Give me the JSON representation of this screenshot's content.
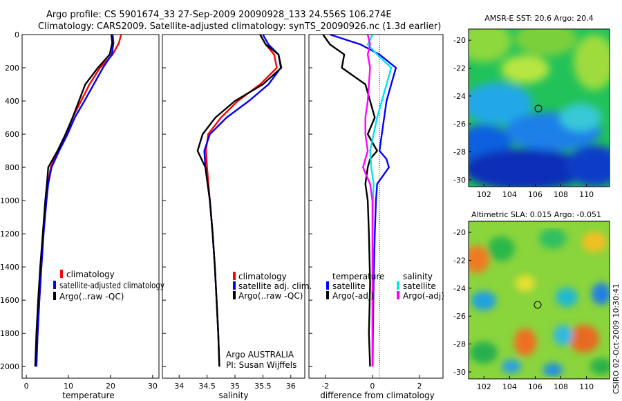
{
  "header": {
    "title_line1": "Argo profile: CS 5901674_33 27-Sep-2009 20090928_133 24.556S 106.274E",
    "title_line2": "Climatology: CARS2009. Satellite-adjusted climatology: synTS_20090926.nc (1.3d earlier)"
  },
  "colors": {
    "red": "#ff0000",
    "blue": "#0000ff",
    "black": "#000000",
    "cyan": "#00e5ee",
    "magenta": "#ff00ff"
  },
  "chart_data": [
    {
      "id": "temperature",
      "type": "line",
      "xlabel": "temperature",
      "ylabel": "",
      "xlim": [
        -1,
        31.5
      ],
      "ylim": [
        0,
        2070
      ],
      "y_reversed": true,
      "xticks": [
        0,
        10,
        20,
        30
      ],
      "yticks": [
        0,
        200,
        400,
        600,
        800,
        1000,
        1200,
        1400,
        1600,
        1800,
        2000
      ],
      "legend": {
        "placement": "lower-right",
        "entries": [
          "climatology",
          "satellite-adjusted climatology",
          "Argo(..raw -QC)"
        ]
      },
      "series": [
        {
          "name": "climatology",
          "color": "red",
          "x": [
            22.5,
            22,
            20.5,
            17.5,
            15,
            13,
            11,
            9.5,
            7.5,
            5.8,
            5.1,
            4.7,
            4,
            3.5,
            3.1,
            2.7,
            2.4
          ],
          "y": [
            0,
            50,
            120,
            200,
            300,
            400,
            500,
            600,
            700,
            800,
            900,
            1000,
            1200,
            1400,
            1600,
            1800,
            2000
          ]
        },
        {
          "name": "satellite-adjusted climatology",
          "color": "blue",
          "x": [
            20.5,
            20.7,
            20.3,
            18.2,
            16,
            13.8,
            11.5,
            9.8,
            7.8,
            6,
            5.2,
            4.8,
            4.1,
            3.6,
            3.1,
            2.7,
            2.4
          ],
          "y": [
            0,
            50,
            120,
            200,
            300,
            400,
            500,
            600,
            700,
            800,
            900,
            1000,
            1200,
            1400,
            1600,
            1800,
            2000
          ]
        },
        {
          "name": "Argo(..raw -QC)",
          "color": "black",
          "x": [
            20.2,
            20.4,
            19.8,
            17,
            14,
            12.5,
            11,
            9.3,
            7.4,
            5.2,
            4.9,
            4.5,
            3.9,
            3.3,
            2.8,
            2.4,
            2.1
          ],
          "y": [
            0,
            50,
            120,
            200,
            300,
            400,
            500,
            600,
            700,
            800,
            900,
            1000,
            1200,
            1400,
            1600,
            1800,
            2000
          ]
        }
      ],
      "annotations": []
    },
    {
      "id": "salinity",
      "type": "line",
      "xlabel": "salinity",
      "xlim": [
        33.7,
        36.25
      ],
      "ylim": [
        0,
        2070
      ],
      "y_reversed": true,
      "xticks": [
        34,
        34.5,
        35,
        35.5,
        36
      ],
      "legend": {
        "placement": "lower-right",
        "entries": [
          "climatology",
          "satellite adj. clim.",
          "Argo(..raw -QC)"
        ]
      },
      "series": [
        {
          "name": "climatology",
          "color": "red",
          "x": [
            35.45,
            35.55,
            35.7,
            35.75,
            35.45,
            35.05,
            34.75,
            34.52,
            34.48,
            34.5,
            34.55,
            34.6,
            34.64,
            34.67,
            34.7,
            34.72
          ],
          "y": [
            0,
            60,
            120,
            200,
            300,
            400,
            500,
            600,
            700,
            800,
            1000,
            1200,
            1400,
            1600,
            1800,
            2000
          ]
        },
        {
          "name": "satellite adj. clim.",
          "color": "blue",
          "x": [
            35.5,
            35.6,
            35.78,
            35.82,
            35.6,
            35.25,
            34.85,
            34.55,
            34.45,
            34.47,
            34.55,
            34.6,
            34.64,
            34.67,
            34.7,
            34.72
          ],
          "y": [
            0,
            60,
            120,
            200,
            300,
            400,
            500,
            600,
            700,
            800,
            1000,
            1200,
            1400,
            1600,
            1800,
            2000
          ]
        },
        {
          "name": "Argo(..raw -QC)",
          "color": "black",
          "x": [
            35.45,
            35.55,
            35.78,
            35.83,
            35.5,
            35.0,
            34.65,
            34.42,
            34.33,
            34.47,
            34.55,
            34.6,
            34.64,
            34.67,
            34.7,
            34.72
          ],
          "y": [
            0,
            60,
            120,
            200,
            300,
            400,
            500,
            600,
            700,
            800,
            1000,
            1200,
            1400,
            1600,
            1800,
            2000
          ]
        }
      ],
      "annotations": [
        "Argo AUSTRALIA",
        "PI: Susan Wijffels"
      ]
    },
    {
      "id": "difference",
      "type": "line",
      "xlabel": "difference from climatology",
      "xlim": [
        -2.7,
        3.0
      ],
      "ylim": [
        0,
        2070
      ],
      "y_reversed": true,
      "xticks": [
        -2,
        0,
        2
      ],
      "reference_line_x": 0,
      "legend": {
        "placement": "lower-center",
        "group_titles": [
          "temperature",
          "salinity"
        ],
        "entries": [
          "satellite",
          "Argo(-adj)",
          "satellite",
          "Argo(-adj)"
        ]
      },
      "series": [
        {
          "name": "temperature satellite",
          "color": "blue",
          "x": [
            -1.8,
            -0.5,
            0.3,
            1,
            0.8,
            0.6,
            0.5,
            0.4,
            0.3,
            0.6,
            0.7,
            0.2,
            0.15,
            0.1,
            0.05,
            0.02,
            0.01
          ],
          "y": [
            0,
            60,
            120,
            200,
            300,
            400,
            500,
            600,
            700,
            750,
            800,
            900,
            1000,
            1200,
            1500,
            1800,
            2000
          ]
        },
        {
          "name": "temperature Argo(-adj)",
          "color": "black",
          "x": [
            -2.1,
            -1.8,
            -1.2,
            -1.3,
            -0.3,
            -0.1,
            0.1,
            -0.2,
            0.2,
            -0.1,
            -0.2,
            -0.3,
            -0.2,
            -0.15,
            -0.1,
            -0.15,
            -0.1
          ],
          "y": [
            0,
            60,
            120,
            200,
            300,
            400,
            500,
            600,
            700,
            750,
            800,
            900,
            1000,
            1200,
            1500,
            1800,
            2000
          ]
        },
        {
          "name": "salinity satellite",
          "color": "cyan",
          "x": [
            0,
            -0.2,
            0.2,
            0.8,
            0.6,
            0.4,
            0.2,
            0.05,
            -0.1,
            -0.05,
            0.05,
            0.02,
            0.01,
            0.01,
            0,
            0
          ],
          "y": [
            0,
            60,
            120,
            200,
            300,
            400,
            500,
            600,
            700,
            800,
            900,
            1000,
            1200,
            1500,
            1800,
            2000
          ]
        },
        {
          "name": "salinity Argo(-adj)",
          "color": "magenta",
          "x": [
            -0.2,
            -0.1,
            -0.2,
            -0.1,
            -0.15,
            -0.2,
            -0.3,
            -0.3,
            -0.2,
            -0.4,
            -0.1,
            0,
            0,
            0,
            0,
            0
          ],
          "y": [
            0,
            60,
            120,
            200,
            300,
            400,
            500,
            600,
            700,
            800,
            900,
            1000,
            1200,
            1500,
            1800,
            2000
          ]
        }
      ],
      "annotations": []
    },
    {
      "id": "sst_map",
      "type": "heatmap",
      "title": "AMSR-E SST: 20.6  Argo: 20.4",
      "xlim": [
        100.8,
        111.8
      ],
      "ylim": [
        -30.5,
        -19.2
      ],
      "xticks": [
        102,
        104,
        106,
        108,
        110
      ],
      "yticks": [
        -20,
        -22,
        -24,
        -26,
        -28,
        -30
      ],
      "marker": {
        "lon": 106.3,
        "lat": -24.56
      }
    },
    {
      "id": "sla_map",
      "type": "heatmap",
      "title": "Altimetric SLA: 0.015  Argo: -0.051",
      "xlim": [
        100.8,
        111.8
      ],
      "ylim": [
        -30.5,
        -19.2
      ],
      "xticks": [
        102,
        104,
        106,
        108,
        110
      ],
      "yticks": [
        -20,
        -22,
        -24,
        -26,
        -28,
        -30
      ],
      "marker": {
        "lon": 106.3,
        "lat": -24.56
      }
    }
  ],
  "side_label": "CSIRO 02-Oct-2009 10:30:41"
}
